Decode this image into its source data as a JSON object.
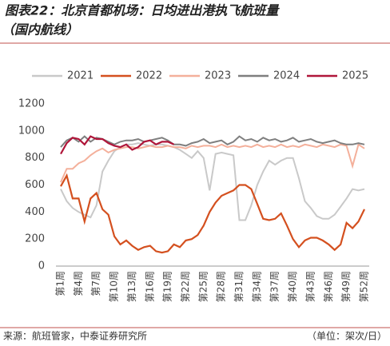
{
  "chart_data": {
    "type": "line",
    "title": "图表22：北京首都机场：日均进出港执飞航班量",
    "subtitle": "（国内航线）",
    "source": "来源：航班管家，中泰证券研究所",
    "unit_note": "（单位：架次/日）",
    "categories": [
      "第1周",
      null,
      null,
      "第4周",
      null,
      null,
      "第7周",
      null,
      null,
      "第10周",
      null,
      null,
      "第13周",
      null,
      null,
      "第16周",
      null,
      null,
      "第19周",
      null,
      null,
      "第22周",
      null,
      null,
      "第25周",
      null,
      null,
      "第28周",
      null,
      null,
      "第31周",
      null,
      null,
      "第34周",
      null,
      null,
      "第37周",
      null,
      null,
      "第40周",
      null,
      null,
      "第43周",
      null,
      null,
      "第46周",
      null,
      null,
      "第49周",
      null,
      null,
      "第52周"
    ],
    "ylim": [
      0,
      1200
    ],
    "yticks": [
      0,
      200,
      400,
      600,
      800,
      1000,
      1200
    ],
    "series": [
      {
        "name": "2021",
        "color": "#c9c9c9",
        "values": [
          570,
          480,
          430,
          400,
          380,
          360,
          450,
          700,
          780,
          850,
          880,
          900,
          900,
          910,
          900,
          890,
          900,
          900,
          890,
          880,
          860,
          830,
          800,
          850,
          800,
          560,
          830,
          840,
          830,
          820,
          340,
          340,
          450,
          600,
          700,
          780,
          750,
          780,
          800,
          800,
          650,
          480,
          430,
          370,
          350,
          350,
          380,
          440,
          500,
          570,
          560,
          570
        ]
      },
      {
        "name": "2022",
        "color": "#d4501f",
        "values": [
          590,
          670,
          500,
          500,
          330,
          500,
          540,
          420,
          380,
          220,
          160,
          190,
          150,
          120,
          140,
          150,
          110,
          100,
          110,
          160,
          140,
          190,
          200,
          230,
          300,
          400,
          470,
          520,
          540,
          560,
          600,
          600,
          570,
          460,
          350,
          340,
          350,
          390,
          300,
          200,
          140,
          190,
          210,
          210,
          190,
          160,
          120,
          160,
          320,
          280,
          330,
          420
        ]
      },
      {
        "name": "2023",
        "color": "#f4b09b",
        "values": [
          620,
          720,
          720,
          760,
          780,
          820,
          850,
          870,
          840,
          860,
          870,
          880,
          880,
          870,
          880,
          890,
          880,
          880,
          890,
          880,
          880,
          870,
          890,
          880,
          890,
          890,
          880,
          900,
          880,
          890,
          880,
          890,
          880,
          900,
          880,
          890,
          880,
          900,
          880,
          890,
          880,
          900,
          890,
          880,
          900,
          890,
          880,
          900,
          890,
          740,
          900,
          870
        ]
      },
      {
        "name": "2024",
        "color": "#7f7f7f",
        "values": [
          880,
          930,
          950,
          920,
          960,
          920,
          950,
          940,
          920,
          900,
          920,
          930,
          930,
          940,
          920,
          930,
          940,
          950,
          930,
          900,
          900,
          890,
          910,
          920,
          940,
          910,
          920,
          930,
          900,
          920,
          960,
          930,
          940,
          920,
          950,
          930,
          940,
          920,
          930,
          950,
          920,
          930,
          940,
          920,
          910,
          920,
          930,
          910,
          900,
          900,
          910,
          900
        ]
      },
      {
        "name": "2025",
        "color": "#b0163a",
        "values": [
          830,
          910,
          950,
          940,
          900,
          960,
          940,
          940,
          910,
          890,
          880,
          900,
          860,
          880,
          920,
          930,
          900,
          920,
          920,
          900,
          null,
          null,
          null,
          null,
          null,
          null,
          null,
          null,
          null,
          null,
          null,
          null,
          null,
          null,
          null,
          null,
          null,
          null,
          null,
          null,
          null,
          null,
          null,
          null,
          null,
          null,
          null,
          null,
          null,
          null,
          null,
          null
        ]
      }
    ]
  }
}
